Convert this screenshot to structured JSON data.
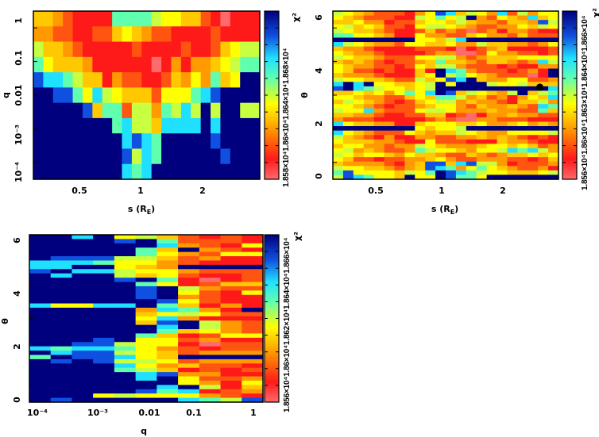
{
  "palette": [
    "#ff6a6a",
    "#ff1a1a",
    "#ff5510",
    "#ff9a00",
    "#ffc800",
    "#ffff00",
    "#c8ff40",
    "#60ffb0",
    "#20e0ff",
    "#1050e0",
    "#00007f"
  ],
  "chart_data": [
    {
      "type": "heatmap",
      "title": "",
      "xlabel": "s (R",
      "xlabel_sub": "E",
      "xlabel_close": ")",
      "ylabel": "q",
      "x_scale": "log",
      "y_scale": "log",
      "xlim": [
        0.3,
        3.8
      ],
      "ylim": [
        7e-05,
        2
      ],
      "xticks": [
        "0.5",
        "1",
        "2"
      ],
      "yticks": [
        "1",
        "0.1",
        "0.01",
        "10⁻³",
        "10⁻⁴"
      ],
      "colorbar": {
        "labels": [
          "1.858×10⁴",
          "1.86×10⁴",
          "1.864×10⁴",
          "1.868×10⁴"
        ],
        "title": "χ²"
      },
      "value_scale": "0 = lowest χ² (pink/red) … 10 = highest χ² (dark blue)",
      "grid": [
        "4432111177776554421011",
        "3322112245432211112111",
        "6443211111211112112456",
        "7544431111110131334567",
        "988764413221124353745A",
        "AA99758654442555789AAA",
        "AAAAA947726637686A6AA66",
        "AAAAAAAA78664888 8A8AAA",
        "AAAAAAAAA8987AAAAA9AAA",
        "AAAAAAAAA9687AAAAAA9AA",
        "AAAAAAAAA878AAAAAAAAAA"
      ]
    },
    {
      "type": "heatmap",
      "xlabel": "s (R",
      "xlabel_sub": "E",
      "xlabel_close": ")",
      "ylabel": "θ",
      "x_scale": "log",
      "xlim": [
        0.3,
        3.8
      ],
      "ylim": [
        0,
        6.3
      ],
      "xticks": [
        "0.5",
        "1",
        "2"
      ],
      "yticks": [
        "0",
        "2",
        "4",
        "6"
      ],
      "colorbar": {
        "labels": [
          "1.856×10⁴",
          "1.86×10⁴",
          "1.863×10⁴",
          "1.864×10⁴",
          "1.866×10⁴"
        ],
        "title": "χ²"
      },
      "best_fit_marker": {
        "s": 3.08,
        "theta": 3.45
      },
      "grid": [
        "6543222135984653826355",
        "5432221165756A32543845",
        "4453312245546433244396",
        "5645422156654322335465",
        "6544321124232023133211",
        "7755431153322453324222",
        "AAAAAAAA55468AAAAAAAAA",
        "8654332554453364433235",
        "4332111122210123411112",
        "5433211112330025332212",
        "6544322255663234445555",
        "4343212234744324432386",
        "5433221254663222121133",
        "5422121141A8732221231A",
        "4333211145A6754322201A",
        "6554432264598A43355223",
        "8A8A554456A5AAA6556444",
        "9A87655456AAAAAAAAAAA8",
        "4454535758A9465436A467",
        "5543322454776342313548",
        "4654321245663433214463",
        "5543212234553243343287",
        "6558322256653334332274",
        "4433211224412013343322",
        "3222111112320033222111",
        "8544331145554453345343",
        "AAAAAAAA54556AAAAAAAAA",
        "8543222543446543355556",
        "6432131133223343432121",
        "5444332115222111433211",
        "4553323365433345545423",
        "5634322376554355687863",
        "6545543544322432344545",
        "5422122334532233322124",
        "4333321349948966312223",
        "6554432349873575432231",
        "7955554657A98765544456",
        "6987554A55A9775AAAAAAA"
      ]
    },
    {
      "type": "heatmap",
      "xlabel": "q",
      "ylabel": "θ",
      "x_scale": "log",
      "xlim": [
        7e-05,
        2
      ],
      "ylim": [
        0,
        6.3
      ],
      "xticks": [
        "10⁻⁴",
        "10⁻³",
        "0.01",
        "0.1",
        "1"
      ],
      "yticks": [
        "0",
        "2",
        "4",
        "6"
      ],
      "colorbar": {
        "labels": [
          "1.856×10⁴",
          "1.86×10⁴",
          "1.862×10⁴",
          "1.864×10⁴",
          "1.866×10⁴"
        ],
        "title": "χ²"
      },
      "grid": [
        "AA8A5642121",
        "AAAA9A72221",
        "AAAAAA83215",
        "AAAAA74A321",
        "AAAAA753255",
        "A9996642311",
        "88875532111",
        "88AA543AAAA",
        "9A886553222",
        "A8AA6452112",
        "AAAA9A71012",
        "AAAAA751244",
        "AAAAA9A6322",
        "AAAAA9A5215",
        "AAAAA9A3211",
        "AAAAAA95211",
        "85588A74131",
        "AAAAA38731A",
        "AAAAA456522",
        "AAAAA583111",
        "AAAAA49A632",
        "AAAAAA8A632",
        "AAAAAA74532",
        "AAAAA741255",
        "AAA9A552311",
        "AA996551022",
        "87887532122",
        "A8996542333",
        "7A99854AAAA",
        "A9A96652333",
        "AAAA8534221",
        "AAAA7641212",
        "AAAAA893311",
        "AAAAA8A5223",
        "AAAAAAA5315",
        "AAAAAA8A614",
        "AAAAA978123",
        "AAA56555321",
        "A9AAAAA8769"
      ]
    }
  ]
}
